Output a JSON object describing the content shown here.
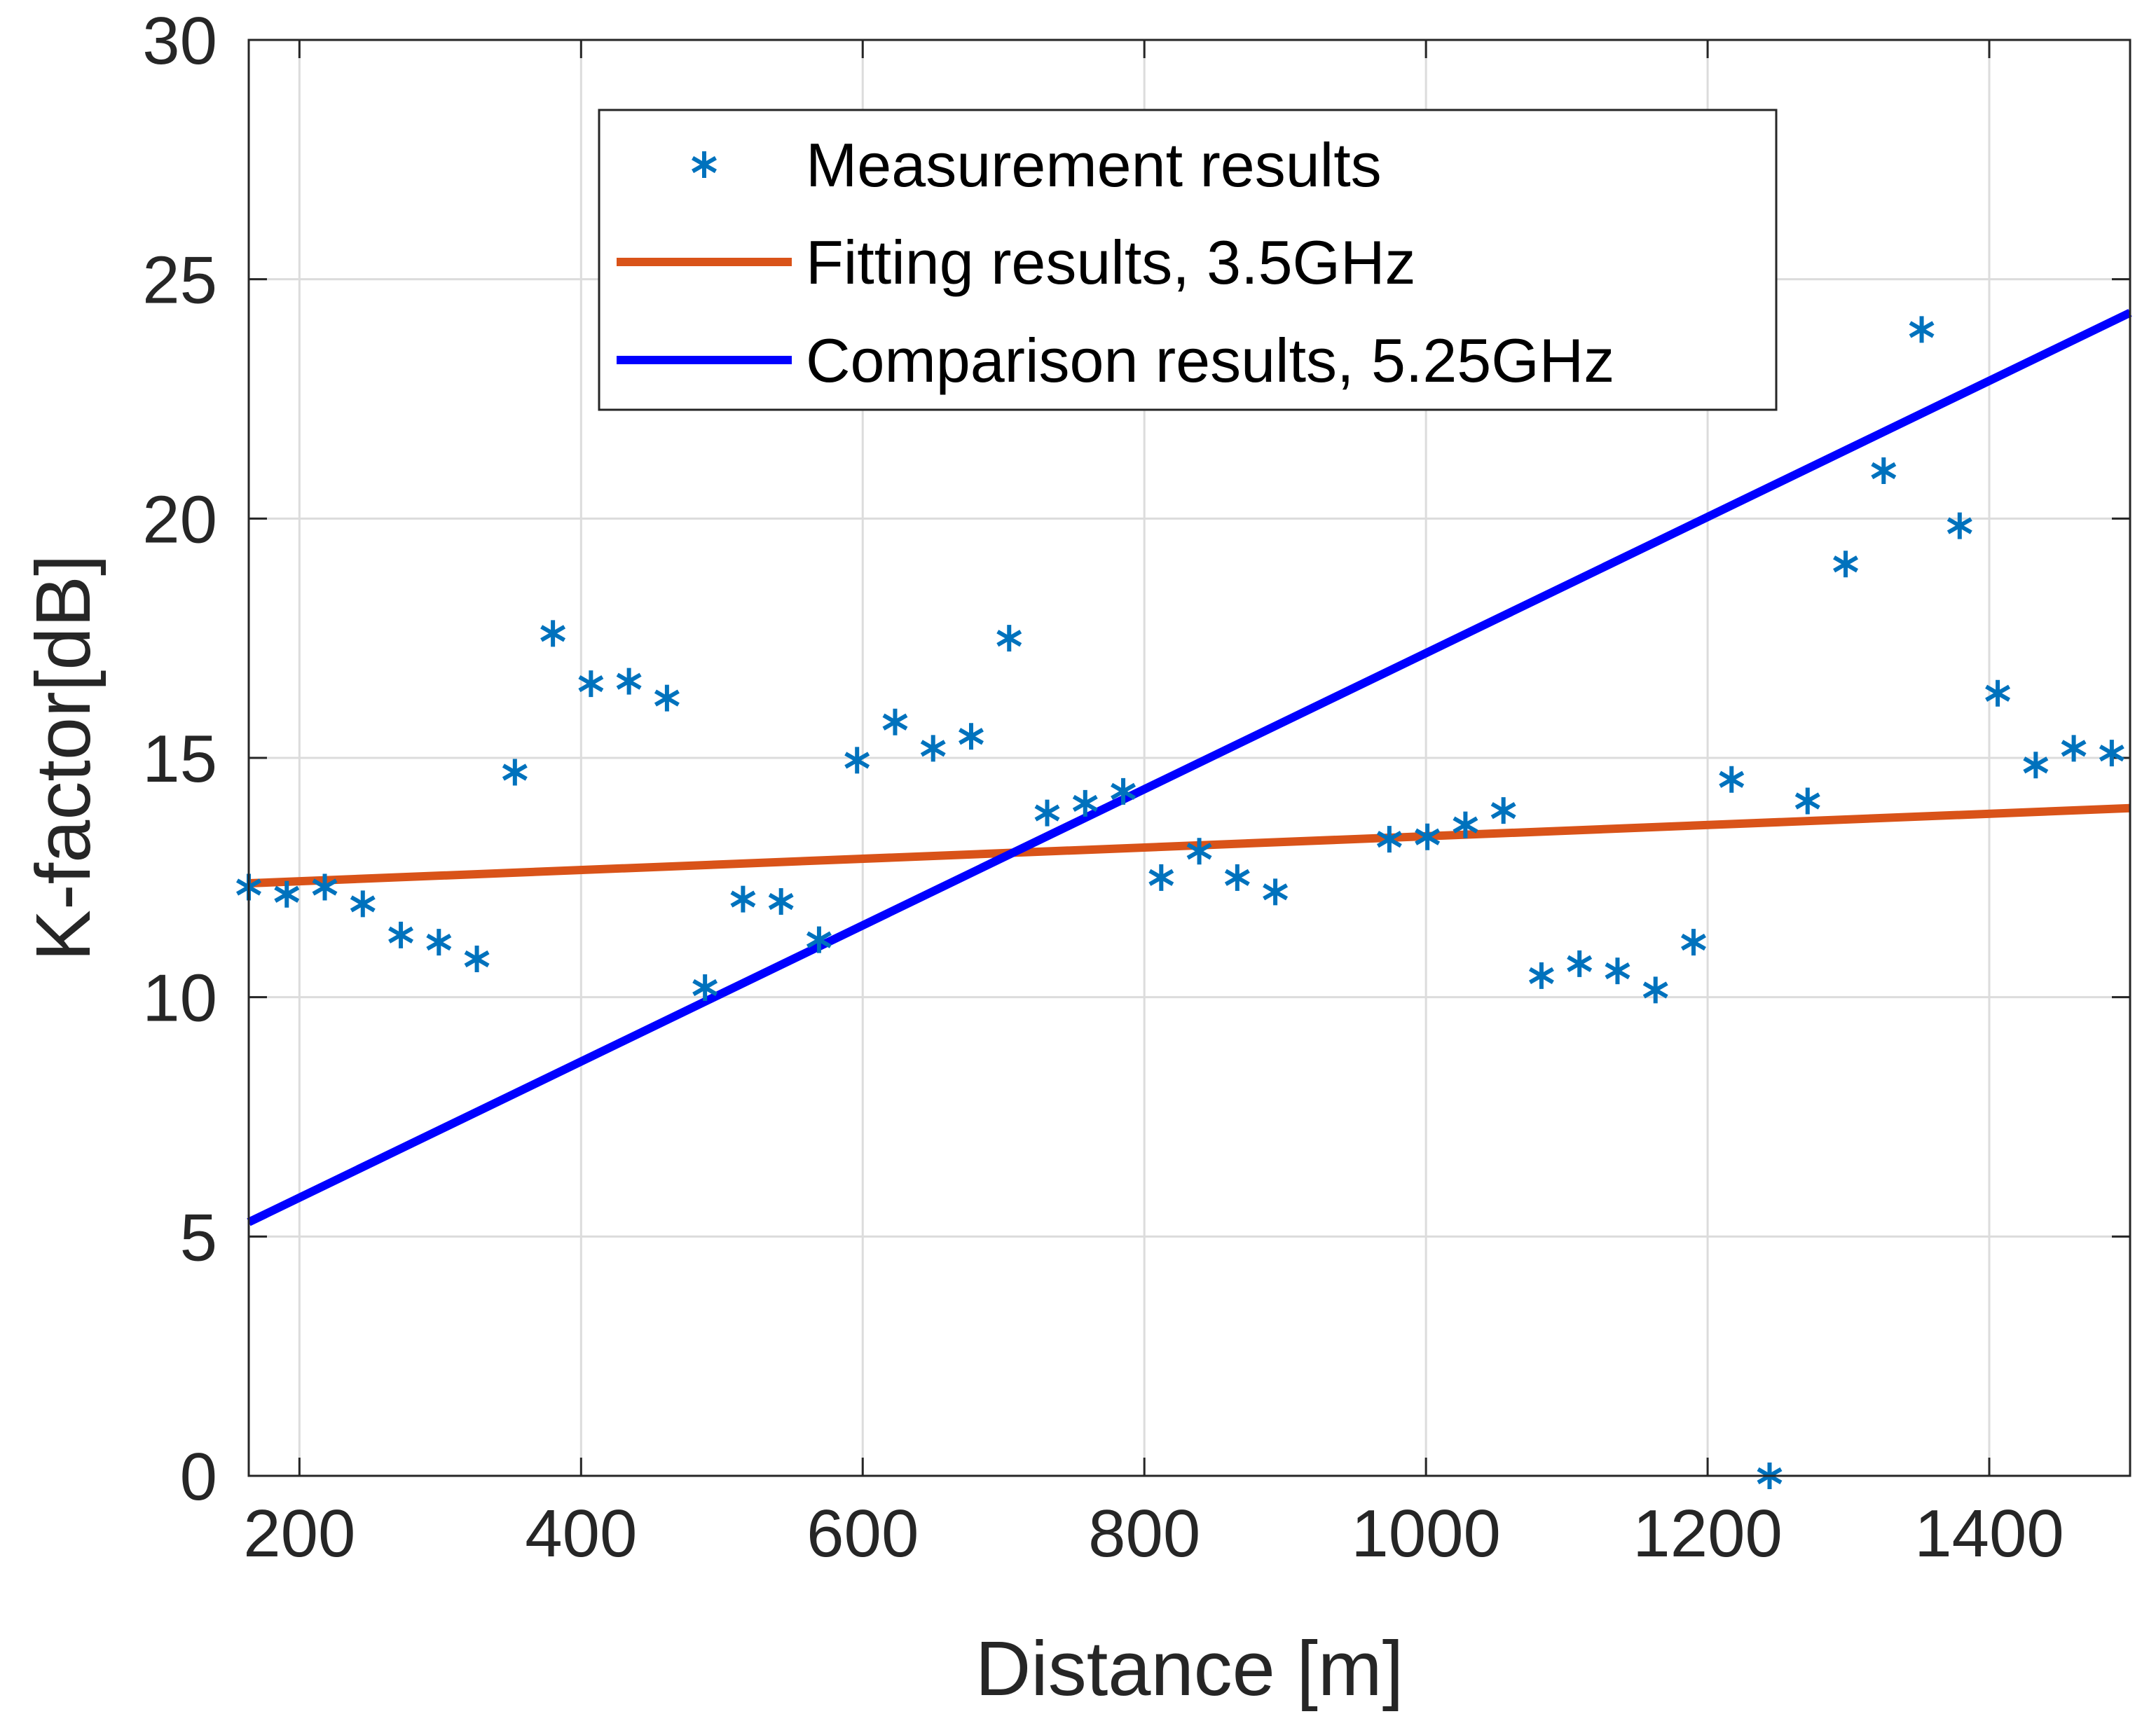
{
  "chart_data": {
    "type": "scatter",
    "title": "",
    "xlabel": "Distance [m]",
    "ylabel": "K-factor[dB]",
    "xlim": [
      164,
      1500
    ],
    "ylim": [
      0,
      30
    ],
    "xticks": [
      200,
      400,
      600,
      800,
      1000,
      1200,
      1400
    ],
    "yticks": [
      0,
      5,
      10,
      15,
      20,
      25,
      30
    ],
    "grid": true,
    "legend_position": "top-center",
    "series": [
      {
        "name": "Measurement results",
        "kind": "scatter",
        "marker": "asterisk",
        "color": "#0072BD",
        "x": [
          164,
          191,
          218,
          245,
          272,
          299,
          326,
          353,
          380,
          407,
          434,
          461,
          488,
          515,
          542,
          569,
          596,
          623,
          650,
          677,
          704,
          731,
          758,
          785,
          812,
          839,
          866,
          893,
          974,
          1001,
          1028,
          1055,
          1082,
          1109,
          1136,
          1163,
          1190,
          1217,
          1244,
          1271,
          1298,
          1325,
          1352,
          1379,
          1406,
          1433,
          1460,
          1487
        ],
        "y": [
          12.3,
          12.15,
          12.3,
          11.95,
          11.3,
          11.15,
          10.8,
          14.7,
          17.6,
          16.55,
          16.6,
          16.25,
          10.2,
          12.05,
          12.0,
          11.2,
          14.95,
          15.75,
          15.2,
          15.45,
          17.5,
          13.85,
          14.05,
          14.3,
          12.5,
          13.05,
          12.5,
          12.2,
          13.3,
          13.35,
          13.6,
          13.9,
          10.45,
          10.7,
          10.55,
          10.15,
          11.15,
          14.55,
          0.0,
          14.1,
          19.05,
          21.0,
          23.95,
          19.85,
          16.35,
          14.85,
          15.2,
          15.1
        ]
      },
      {
        "name": "Fitting results, 3.5GHz",
        "kind": "line",
        "color": "#D95319",
        "x": [
          164,
          1500
        ],
        "y": [
          12.38,
          13.95
        ]
      },
      {
        "name": "Comparison results, 5.25GHz",
        "kind": "line",
        "color": "#0000FF",
        "x": [
          164,
          1500
        ],
        "y": [
          5.3,
          24.3
        ]
      }
    ]
  }
}
